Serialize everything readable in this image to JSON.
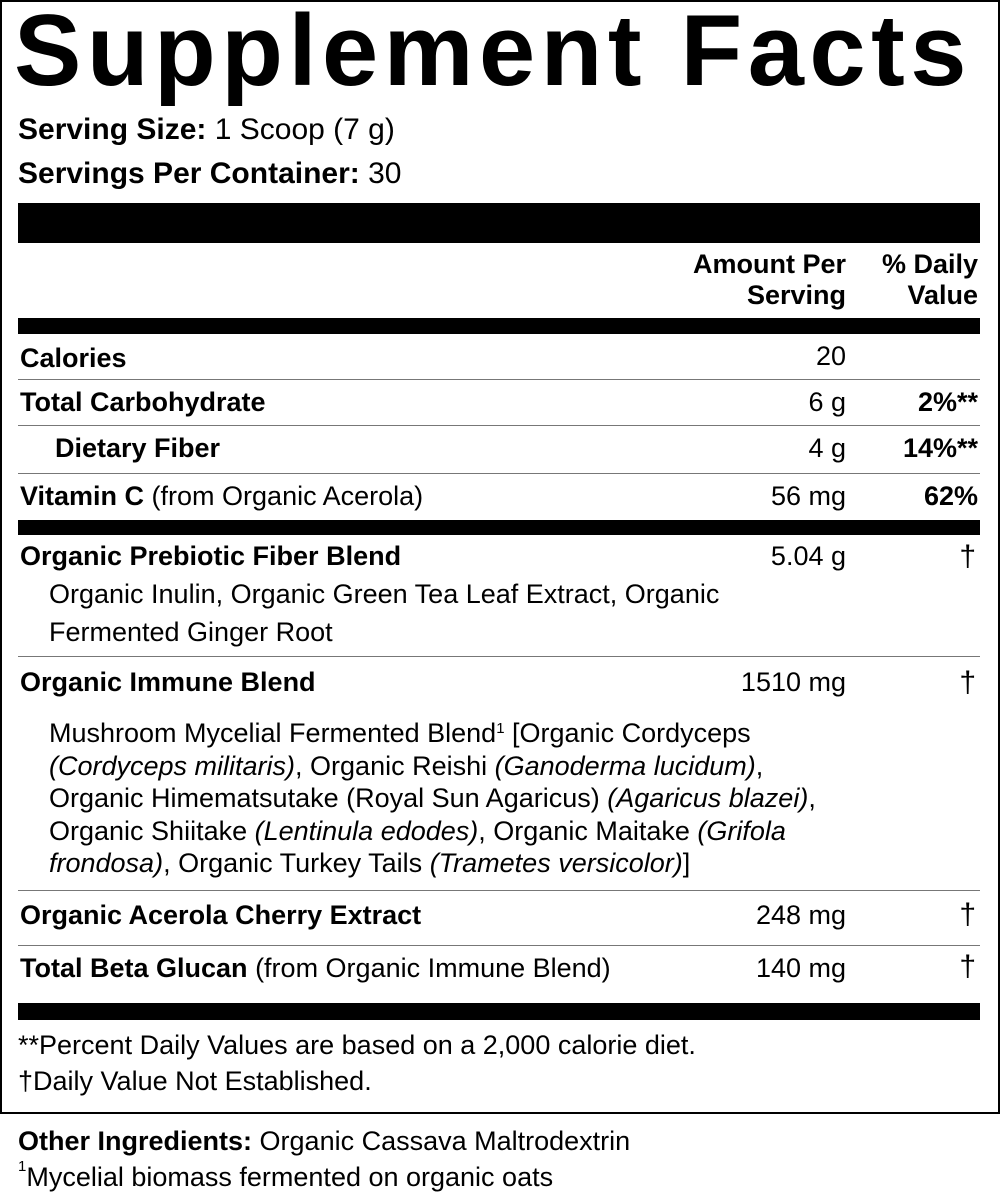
{
  "title": "Supplement Facts",
  "serving": {
    "size_label": "Serving Size:",
    "size_value": "1 Scoop (7 g)",
    "per_container_label": "Servings Per Container:",
    "per_container_value": "30"
  },
  "headers": {
    "amount_line1": "Amount Per",
    "amount_line2": "Serving",
    "dv_line1": "% Daily",
    "dv_line2": "Value"
  },
  "rows": [
    {
      "name": "Calories",
      "amount": "20",
      "dv": ""
    },
    {
      "name": "Total Carbohydrate",
      "amount": "6 g",
      "dv": "2%**"
    },
    {
      "name": "Dietary Fiber",
      "amount": "4 g",
      "dv": "14%**"
    },
    {
      "name": "Vitamin C",
      "note": "(from Organic Acerola)",
      "amount": "56 mg",
      "dv": "62%"
    },
    {
      "name": "Organic Prebiotic Fiber Blend",
      "amount": "5.04 g",
      "dv": "†",
      "ingredients_line1": "Organic Inulin, Organic Green Tea Leaf Extract, Organic",
      "ingredients_line2": "Fermented Ginger Root"
    },
    {
      "name": "Organic Immune Blend",
      "amount": "1510 mg",
      "dv": "†",
      "ingredients": {
        "p1": "Mushroom Mycelial Fermented Blend",
        "sup": "1",
        "p2": " [Organic Cordyceps",
        "i1": "(Cordyceps militaris)",
        "p3": ", Organic Reishi ",
        "i2": "(Ganoderma lucidum)",
        "p4": ",",
        "p5": "Organic Himematsutake (Royal Sun Agaricus) ",
        "i3": "(Agaricus blazei)",
        "p6": ",",
        "p7": "Organic Shiitake ",
        "i4": "(Lentinula edodes)",
        "p8": ", Organic Maitake ",
        "i5": "(Grifola",
        "i6": "frondosa)",
        "p9": ", Organic Turkey Tails ",
        "i7": "(Trametes versicolor)",
        "p10": "]"
      }
    },
    {
      "name": "Organic Acerola Cherry Extract",
      "amount": "248 mg",
      "dv": "†"
    },
    {
      "name": "Total Beta Glucan",
      "note": "(from Organic Immune Blend)",
      "amount": "140 mg",
      "dv": "†"
    }
  ],
  "footnotes": {
    "dv_basis": "**Percent Daily Values are based on a 2,000 calorie diet.",
    "dagger": "†",
    "not_established": "Daily Value Not Established."
  },
  "other": {
    "label": "Other Ingredients:",
    "value": "Organic Cassava Maltrodextrin",
    "footnote_mark": "1",
    "footnote_text": "Mycelial biomass fermented on organic oats"
  }
}
